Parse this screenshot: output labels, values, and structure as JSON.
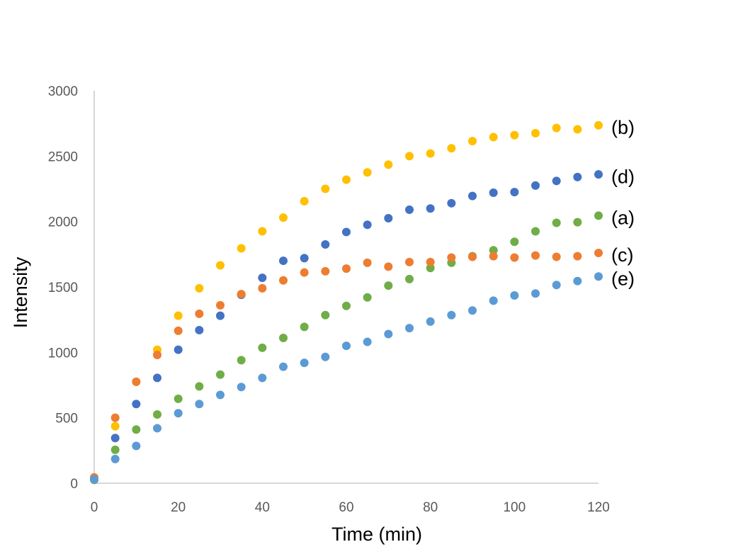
{
  "chart_data": {
    "type": "scatter",
    "title": "",
    "xlabel": "Time (min)",
    "ylabel": "Intensity",
    "xlim": [
      0,
      120
    ],
    "ylim": [
      0,
      3000
    ],
    "xticks": [
      0,
      20,
      40,
      60,
      80,
      100,
      120
    ],
    "yticks": [
      0,
      500,
      1000,
      1500,
      2000,
      2500,
      3000
    ],
    "grid": false,
    "x": [
      0,
      5,
      10,
      15,
      20,
      25,
      30,
      35,
      40,
      45,
      50,
      55,
      60,
      65,
      70,
      75,
      80,
      85,
      90,
      95,
      100,
      105,
      110,
      115,
      120
    ],
    "series": [
      {
        "name": "(b)",
        "color": "#FFC000",
        "values": [
          35,
          435,
          775,
          1020,
          1280,
          1490,
          1665,
          1795,
          1925,
          2030,
          2155,
          2250,
          2320,
          2375,
          2435,
          2500,
          2520,
          2560,
          2615,
          2645,
          2660,
          2675,
          2715,
          2705,
          2735
        ]
      },
      {
        "name": "(d)",
        "color": "#4472C4",
        "values": [
          30,
          345,
          605,
          805,
          1020,
          1170,
          1280,
          1440,
          1570,
          1700,
          1720,
          1825,
          1920,
          1975,
          2025,
          2090,
          2100,
          2140,
          2195,
          2220,
          2225,
          2275,
          2310,
          2340,
          2360
        ]
      },
      {
        "name": "(a)",
        "color": "#70AD47",
        "values": [
          25,
          255,
          410,
          525,
          645,
          740,
          830,
          940,
          1035,
          1110,
          1195,
          1285,
          1355,
          1420,
          1510,
          1560,
          1645,
          1685,
          1735,
          1780,
          1845,
          1925,
          1990,
          1995,
          2045
        ]
      },
      {
        "name": "(c)",
        "color": "#ED7D31",
        "values": [
          45,
          500,
          775,
          980,
          1165,
          1295,
          1360,
          1445,
          1490,
          1550,
          1610,
          1620,
          1640,
          1685,
          1655,
          1690,
          1690,
          1725,
          1730,
          1735,
          1725,
          1740,
          1730,
          1735,
          1760
        ]
      },
      {
        "name": "(e)",
        "color": "#5B9BD5",
        "values": [
          30,
          185,
          285,
          420,
          535,
          605,
          675,
          735,
          805,
          890,
          920,
          965,
          1050,
          1080,
          1140,
          1185,
          1235,
          1285,
          1320,
          1395,
          1435,
          1450,
          1515,
          1545,
          1580
        ]
      }
    ]
  }
}
